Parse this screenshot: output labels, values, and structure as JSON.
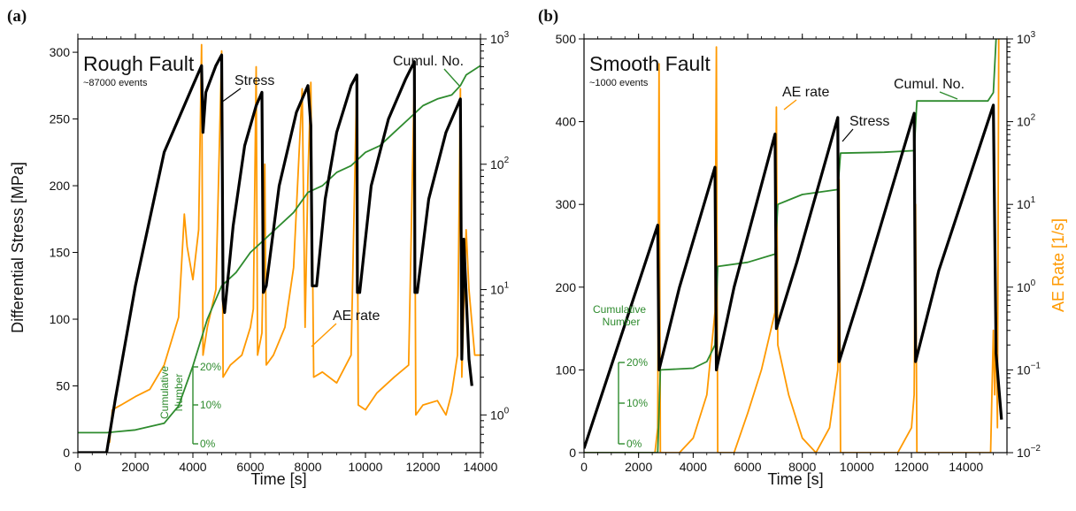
{
  "colors": {
    "stress": "#000000",
    "ae_rate": "#ff9900",
    "cumulative": "#2e8b2e",
    "right_axis_label": "#ff9900"
  },
  "chart_data": [
    {
      "panel_label": "(a)",
      "type": "line",
      "title": "Rough Fault",
      "subtitle": "~87000 events",
      "xlabel": "Time [s]",
      "ylabel": "Differential Stress [MPa]",
      "y2label": "",
      "xlim": [
        0,
        14000
      ],
      "ylim": [
        0,
        310
      ],
      "y2lim_log": [
        0.5,
        1000
      ],
      "y2scale": "log",
      "xticks": [
        "0",
        "2000",
        "4000",
        "6000",
        "8000",
        "10000",
        "12000",
        "14000"
      ],
      "yticks": [
        "0",
        "50",
        "100",
        "150",
        "200",
        "250",
        "300"
      ],
      "y2ticks_exp": [
        "0",
        "1",
        "2",
        "3"
      ],
      "annotations": {
        "stress": "Stress",
        "ae_rate": "AE rate",
        "cumul": "Cumul. No."
      },
      "cumulative_scale": {
        "title_line1": "Cumulative",
        "title_line2": "Number",
        "ticks": [
          "20%",
          "10%",
          "0%"
        ]
      },
      "series": [
        {
          "name": "Stress",
          "axis": "left",
          "points": [
            [
              0,
              0
            ],
            [
              1000,
              0
            ],
            [
              1300,
              40
            ],
            [
              2000,
              125
            ],
            [
              3000,
              225
            ],
            [
              4000,
              275
            ],
            [
              4300,
              290
            ],
            [
              4350,
              240
            ],
            [
              4450,
              270
            ],
            [
              4800,
              290
            ],
            [
              5000,
              298
            ],
            [
              5050,
              115
            ],
            [
              5100,
              105
            ],
            [
              5400,
              170
            ],
            [
              5800,
              230
            ],
            [
              6200,
              260
            ],
            [
              6400,
              270
            ],
            [
              6450,
              120
            ],
            [
              6550,
              125
            ],
            [
              7000,
              200
            ],
            [
              7600,
              255
            ],
            [
              8000,
              275
            ],
            [
              8100,
              245
            ],
            [
              8150,
              125
            ],
            [
              8300,
              125
            ],
            [
              8600,
              190
            ],
            [
              9000,
              240
            ],
            [
              9500,
              275
            ],
            [
              9700,
              283
            ],
            [
              9720,
              120
            ],
            [
              9800,
              120
            ],
            [
              10200,
              200
            ],
            [
              10800,
              250
            ],
            [
              11400,
              280
            ],
            [
              11700,
              293
            ],
            [
              11720,
              120
            ],
            [
              11800,
              120
            ],
            [
              12200,
              190
            ],
            [
              12800,
              240
            ],
            [
              13300,
              265
            ],
            [
              13350,
              70
            ],
            [
              13420,
              160
            ],
            [
              13600,
              70
            ],
            [
              13700,
              50
            ]
          ]
        },
        {
          "name": "AE rate",
          "axis": "right",
          "points": [
            [
              1100,
              0.6
            ],
            [
              1200,
              1.1
            ],
            [
              1500,
              1.2
            ],
            [
              2000,
              1.4
            ],
            [
              2500,
              1.6
            ],
            [
              3000,
              2.5
            ],
            [
              3500,
              6
            ],
            [
              3600,
              15
            ],
            [
              3700,
              40
            ],
            [
              3800,
              22
            ],
            [
              4000,
              12
            ],
            [
              4200,
              30
            ],
            [
              4300,
              900
            ],
            [
              4350,
              3
            ],
            [
              4500,
              5
            ],
            [
              4800,
              10
            ],
            [
              5000,
              800
            ],
            [
              5050,
              2
            ],
            [
              5300,
              2.5
            ],
            [
              5700,
              3
            ],
            [
              6000,
              5
            ],
            [
              6100,
              7
            ],
            [
              6200,
              600
            ],
            [
              6250,
              3
            ],
            [
              6400,
              4.5
            ],
            [
              6500,
              100
            ],
            [
              6550,
              2.5
            ],
            [
              6800,
              3
            ],
            [
              7200,
              5
            ],
            [
              7500,
              15
            ],
            [
              7800,
              400
            ],
            [
              7900,
              5
            ],
            [
              8000,
              80
            ],
            [
              8100,
              450
            ],
            [
              8200,
              2
            ],
            [
              8500,
              2.2
            ],
            [
              9000,
              1.8
            ],
            [
              9500,
              3
            ],
            [
              9700,
              500
            ],
            [
              9750,
              1.2
            ],
            [
              10000,
              1.1
            ],
            [
              10400,
              1.5
            ],
            [
              11000,
              2
            ],
            [
              11500,
              2.5
            ],
            [
              11700,
              500
            ],
            [
              11750,
              1
            ],
            [
              12000,
              1.2
            ],
            [
              12500,
              1.3
            ],
            [
              12800,
              1
            ],
            [
              13000,
              1.5
            ],
            [
              13200,
              3
            ],
            [
              13300,
              400
            ],
            [
              13350,
              2
            ],
            [
              13500,
              30
            ],
            [
              13600,
              10
            ],
            [
              13800,
              3
            ],
            [
              14000,
              3
            ]
          ]
        },
        {
          "name": "Cumul. No.",
          "axis": "cumulative_pct",
          "points": [
            [
              0,
              15
            ],
            [
              1000,
              15
            ],
            [
              2000,
              17
            ],
            [
              3000,
              22
            ],
            [
              3500,
              35
            ],
            [
              4000,
              65
            ],
            [
              4500,
              100
            ],
            [
              5000,
              125
            ],
            [
              5500,
              135
            ],
            [
              6000,
              150
            ],
            [
              6500,
              160
            ],
            [
              7000,
              170
            ],
            [
              7500,
              180
            ],
            [
              8000,
              195
            ],
            [
              8500,
              200
            ],
            [
              9000,
              210
            ],
            [
              9500,
              215
            ],
            [
              10000,
              225
            ],
            [
              10500,
              230
            ],
            [
              11000,
              240
            ],
            [
              11500,
              250
            ],
            [
              12000,
              260
            ],
            [
              12500,
              265
            ],
            [
              13000,
              268
            ],
            [
              13300,
              275
            ],
            [
              13500,
              283
            ],
            [
              14000,
              290
            ]
          ]
        }
      ]
    },
    {
      "panel_label": "(b)",
      "type": "line",
      "title": "Smooth Fault",
      "subtitle": "~1000 events",
      "xlabel": "Time [s]",
      "ylabel": "",
      "y2label": "AE Rate [1/s]",
      "xlim": [
        0,
        15500
      ],
      "ylim": [
        0,
        500
      ],
      "y2lim_log": [
        0.01,
        1000
      ],
      "y2scale": "log",
      "xticks": [
        "0",
        "2000",
        "4000",
        "6000",
        "8000",
        "10000",
        "12000",
        "14000"
      ],
      "yticks": [
        "0",
        "100",
        "200",
        "300",
        "400",
        "500"
      ],
      "y2ticks_exp": [
        "−2",
        "−1",
        "0",
        "1",
        "2",
        "3"
      ],
      "annotations": {
        "stress": "Stress",
        "ae_rate": "AE rate",
        "cumul": "Cumul. No."
      },
      "cumulative_scale": {
        "title_line1": "Cumulative",
        "title_line2": "Number",
        "ticks": [
          "20%",
          "10%",
          "0%"
        ]
      },
      "series": [
        {
          "name": "Stress",
          "axis": "left",
          "points": [
            [
              0,
              5
            ],
            [
              2700,
              275
            ],
            [
              2750,
              100
            ],
            [
              3500,
              200
            ],
            [
              4800,
              345
            ],
            [
              4850,
              100
            ],
            [
              5500,
              200
            ],
            [
              7000,
              385
            ],
            [
              7050,
              150
            ],
            [
              7800,
              230
            ],
            [
              9300,
              405
            ],
            [
              9350,
              110
            ],
            [
              10200,
              200
            ],
            [
              12100,
              410
            ],
            [
              12150,
              110
            ],
            [
              13000,
              220
            ],
            [
              15000,
              420
            ],
            [
              15100,
              120
            ],
            [
              15200,
              80
            ],
            [
              15300,
              40
            ]
          ]
        },
        {
          "name": "AE rate",
          "axis": "right",
          "points": [
            [
              0,
              0.01
            ],
            [
              2600,
              0.01
            ],
            [
              2700,
              0.02
            ],
            [
              2750,
              500
            ],
            [
              2800,
              0.01
            ],
            [
              3500,
              0.01
            ],
            [
              4000,
              0.015
            ],
            [
              4500,
              0.05
            ],
            [
              4800,
              0.5
            ],
            [
              4850,
              800
            ],
            [
              4900,
              0.01
            ],
            [
              5500,
              0.01
            ],
            [
              6000,
              0.03
            ],
            [
              6500,
              0.1
            ],
            [
              7000,
              0.5
            ],
            [
              7050,
              150
            ],
            [
              7100,
              0.2
            ],
            [
              7500,
              0.05
            ],
            [
              8000,
              0.015
            ],
            [
              8500,
              0.01
            ],
            [
              9000,
              0.02
            ],
            [
              9300,
              0.1
            ],
            [
              9350,
              20
            ],
            [
              9400,
              0.01
            ],
            [
              11500,
              0.01
            ],
            [
              12000,
              0.02
            ],
            [
              12100,
              0.05
            ],
            [
              12150,
              10
            ],
            [
              12200,
              0.01
            ],
            [
              14500,
              0.01
            ],
            [
              14900,
              0.01
            ],
            [
              15000,
              0.3
            ],
            [
              15050,
              0.05
            ],
            [
              15100,
              0.5
            ],
            [
              15150,
              0.02
            ],
            [
              15200,
              1000
            ]
          ]
        },
        {
          "name": "Cumul. No.",
          "axis": "left",
          "points": [
            [
              0,
              0
            ],
            [
              2700,
              0
            ],
            [
              2800,
              100
            ],
            [
              4000,
              102
            ],
            [
              4500,
              110
            ],
            [
              4800,
              130
            ],
            [
              4900,
              225
            ],
            [
              6000,
              230
            ],
            [
              7000,
              240
            ],
            [
              7100,
              300
            ],
            [
              8000,
              312
            ],
            [
              9300,
              318
            ],
            [
              9400,
              362
            ],
            [
              11000,
              363
            ],
            [
              12100,
              365
            ],
            [
              12200,
              425
            ],
            [
              14800,
              425
            ],
            [
              15000,
              435
            ],
            [
              15100,
              500
            ]
          ]
        }
      ]
    }
  ]
}
